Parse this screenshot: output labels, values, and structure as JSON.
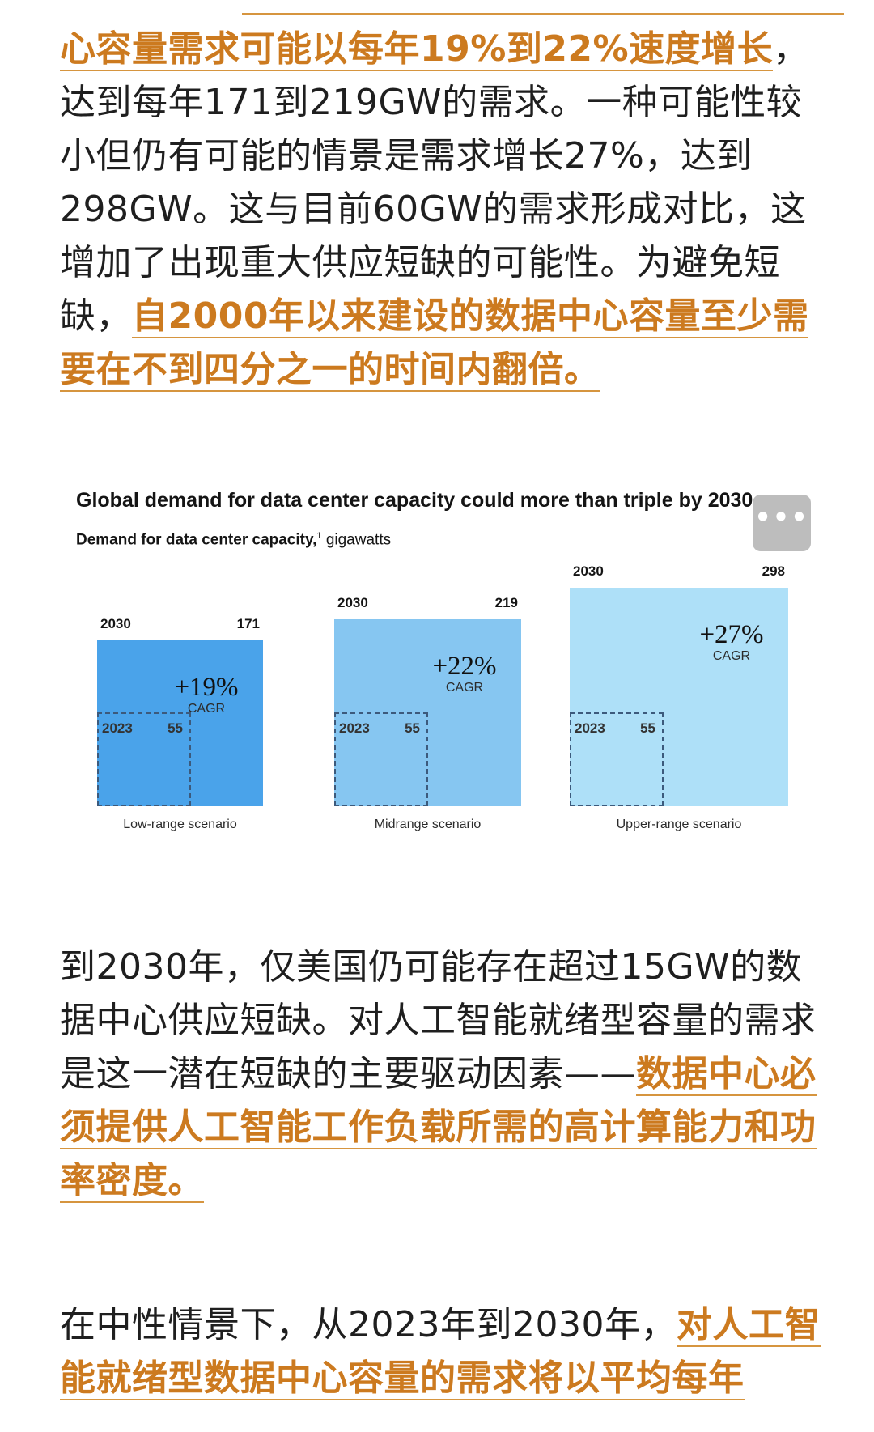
{
  "article": {
    "p1": {
      "hl1": "心容量需求可能以每年19%到22%速度增长",
      "text1": "，达到每年171到219GW的需求。一种可能性较小但仍有可能的情景是需求增长27%，达到298GW。这与目前60GW的需求形成对比，这增加了出现重大供应短缺的可能性。为避免短缺，",
      "hl2": "自2000年以来建设的数据中心容量至少需要在不到四分之一的时间内翻倍。"
    },
    "p2": {
      "text": "到2030年，仅美国仍可能存在超过15GW的数据中心供应短缺。对人工智能就绪型容量的需求是这一潜在短缺的主要驱动因素——",
      "hl": "数据中心必须提供人工智能工作负载所需的高计算能力和功率密度。"
    },
    "p3": {
      "text": "在中性情景下，从2023年到2030年，",
      "hl": "对人工智能就绪型数据中心容量的需求将以平均每年"
    }
  },
  "chart_data": {
    "type": "area",
    "title": "Global demand for data center capacity could more than triple by 2030.",
    "subtitle_bold": "Demand for data center capacity,",
    "subtitle_sup": "1",
    "subtitle_unit": " gigawatts",
    "year_start": "2023",
    "year_end": "2030",
    "cagr_label": "CAGR",
    "series": [
      {
        "name": "Low-range scenario",
        "value_2023": 55,
        "value_2030": 171,
        "cagr": "+19%",
        "color": "#4aa3ea"
      },
      {
        "name": "Midrange scenario",
        "value_2023": 55,
        "value_2030": 219,
        "cagr": "+22%",
        "color": "#86c6f1"
      },
      {
        "name": "Upper-range scenario",
        "value_2023": 55,
        "value_2030": 298,
        "cagr": "+27%",
        "color": "#aee0f8"
      }
    ]
  },
  "ui": {
    "more_button_icon": "more-horizontal-icon"
  }
}
